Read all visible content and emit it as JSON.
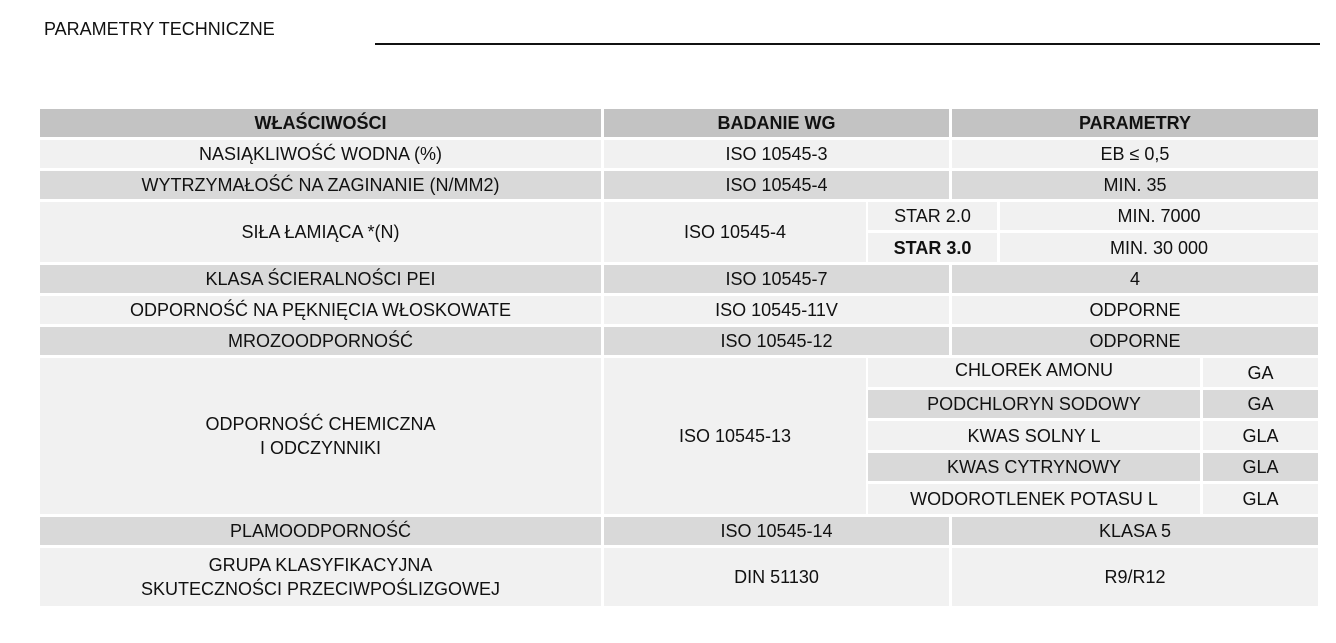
{
  "title": "PARAMETRY TECHNICZNE",
  "header": [
    "WŁAŚCIWOŚCI",
    "BADANIE WG",
    "PARAMETRY"
  ],
  "rows": {
    "water": {
      "property": "NASIĄKLIWOŚĆ WODNA (%)",
      "standard": "ISO 10545-3",
      "value": "EB ≤ 0,5"
    },
    "bending": {
      "property": "WYTRZYMAŁOŚĆ NA ZAGINANIE (N/MM2)",
      "standard": "ISO 10545-4",
      "value": "MIN. 35"
    },
    "breaking": {
      "property": "SIŁA ŁAMIĄCA *(N)",
      "standard": "ISO 10545-4",
      "variants": [
        {
          "name": "STAR 2.0",
          "value": "MIN. 7000"
        },
        {
          "name": "STAR 3.0",
          "value": "MIN. 30 000"
        }
      ]
    },
    "pei": {
      "property": "KLASA ŚCIERALNOŚCI PEI",
      "standard": "ISO 10545-7",
      "value": "4"
    },
    "crazing": {
      "property": "ODPORNOŚĆ NA PĘKNIĘCIA WŁOSKOWATE",
      "standard": "ISO 10545-11V",
      "value": "ODPORNE"
    },
    "frost": {
      "property": "MROZOODPORNOŚĆ",
      "standard": "ISO 10545-12",
      "value": "ODPORNE"
    },
    "chemical": {
      "property_line1": "ODPORNOŚĆ CHEMICZNA",
      "property_line2": "I ODCZYNNIKI",
      "standard": "ISO 10545-13",
      "agents": [
        {
          "name": "CHLOREK AMONU",
          "value": "GA"
        },
        {
          "name": "PODCHLORYN SODOWY",
          "value": "GA"
        },
        {
          "name": "KWAS SOLNY L",
          "value": "GLA"
        },
        {
          "name": "KWAS CYTRYNOWY",
          "value": "GLA"
        },
        {
          "name": "WODOROTLENEK POTASU L",
          "value": "GLA"
        }
      ]
    },
    "stain": {
      "property": "PLAMOODPORNOŚĆ",
      "standard": "ISO 10545-14",
      "value": "KLASA 5"
    },
    "slip": {
      "property_line1": "GRUPA KLASYFIKACYJNA",
      "property_line2": "SKUTECZNOŚCI PRZECIWPOŚLIZGOWEJ",
      "standard": "DIN 51130",
      "value": "R9/R12"
    }
  }
}
